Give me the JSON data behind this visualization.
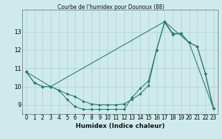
{
  "title": "Courbe de l'humidex pour Dounoux (88)",
  "xlabel": "Humidex (Indice chaleur)",
  "xlim": [
    -0.5,
    23.5
  ],
  "ylim": [
    8.5,
    14.2
  ],
  "yticks": [
    9,
    10,
    11,
    12,
    13
  ],
  "xticks": [
    0,
    1,
    2,
    3,
    4,
    5,
    6,
    7,
    8,
    9,
    10,
    11,
    12,
    13,
    14,
    15,
    16,
    17,
    18,
    19,
    20,
    21,
    22,
    23
  ],
  "line_color": "#2a7a6e",
  "bg_color": "#ceeaec",
  "grid_color": "#a8d0d4",
  "series1_x": [
    0,
    1,
    2,
    3,
    4,
    5,
    6,
    7,
    8,
    9,
    10,
    11,
    12,
    13,
    14,
    15,
    16,
    17,
    18,
    19,
    20,
    21,
    22,
    23
  ],
  "series1_y": [
    10.8,
    10.2,
    10.0,
    10.0,
    9.8,
    9.3,
    8.9,
    8.75,
    8.75,
    8.75,
    8.75,
    8.75,
    8.75,
    9.4,
    9.9,
    10.3,
    12.0,
    13.5,
    12.85,
    12.9,
    12.4,
    12.2,
    10.7,
    8.8
  ],
  "series2_x": [
    0,
    1,
    2,
    3,
    4,
    5,
    6,
    7,
    8,
    9,
    10,
    11,
    12,
    13,
    14,
    15,
    16,
    17,
    18,
    19,
    20,
    21,
    22,
    23
  ],
  "series2_y": [
    10.8,
    10.2,
    10.0,
    10.0,
    9.8,
    9.6,
    9.45,
    9.2,
    9.05,
    9.0,
    9.0,
    9.0,
    9.05,
    9.3,
    9.6,
    10.05,
    12.0,
    13.55,
    12.9,
    12.9,
    12.4,
    12.2,
    10.7,
    8.8
  ],
  "series3_x": [
    0,
    3,
    17,
    20,
    23
  ],
  "series3_y": [
    10.8,
    10.0,
    13.55,
    12.4,
    8.8
  ],
  "tick_fontsize": 5.5,
  "xlabel_fontsize": 6.5
}
